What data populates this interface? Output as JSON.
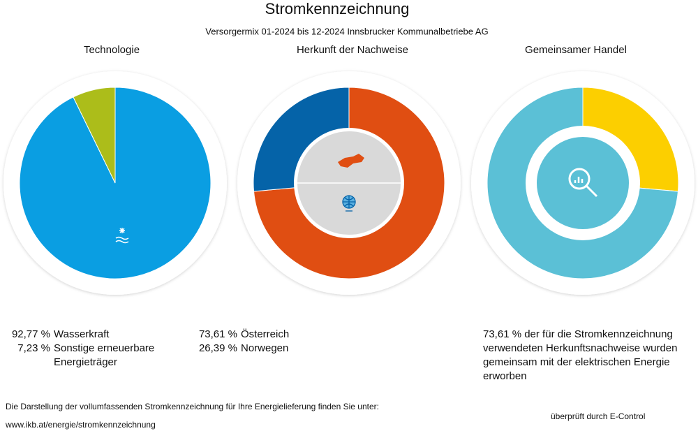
{
  "title": "Stromkennzeichnung",
  "subtitle": "Versorgermix 01-2024 bis 12-2024 Innsbrucker Kommunalbetriebe AG",
  "chart_data": [
    {
      "type": "pie",
      "title": "Technologie",
      "categories": [
        "Wasserkraft",
        "Sonstige erneuerbare Energieträger"
      ],
      "values": [
        92.77,
        7.23
      ],
      "value_labels": [
        "92,77 %",
        "7,23 %"
      ],
      "colors": [
        "#0a9ee2",
        "#acbd1a"
      ]
    },
    {
      "type": "donut",
      "title": "Herkunft der Nachweise",
      "categories": [
        "Österreich",
        "Norwegen"
      ],
      "values": [
        73.61,
        26.39
      ],
      "value_labels": [
        "73,61 %",
        "26,39 %"
      ],
      "colors": [
        "#e04e12",
        "#0563a8"
      ]
    },
    {
      "type": "donut",
      "title": "Gemeinsamer Handel",
      "categories": [
        null,
        null
      ],
      "values": [
        26.39,
        73.61
      ],
      "colors": [
        "#fccf00",
        "#5bc0d6"
      ],
      "annotation": "73,61 % der für die Stromkennzeichnung verwendeten Herkunftsnachweise wurden gemeinsam mit der elektrischen Energie erworben"
    }
  ],
  "footer": {
    "text": "Die Darstellung der vollumfassenden Stromkennzeichnung für Ihre Energielieferung finden Sie unter:",
    "url": "www.ikb.at/energie/stromkennzeichnung",
    "verified": "überprüft durch E-Control"
  }
}
